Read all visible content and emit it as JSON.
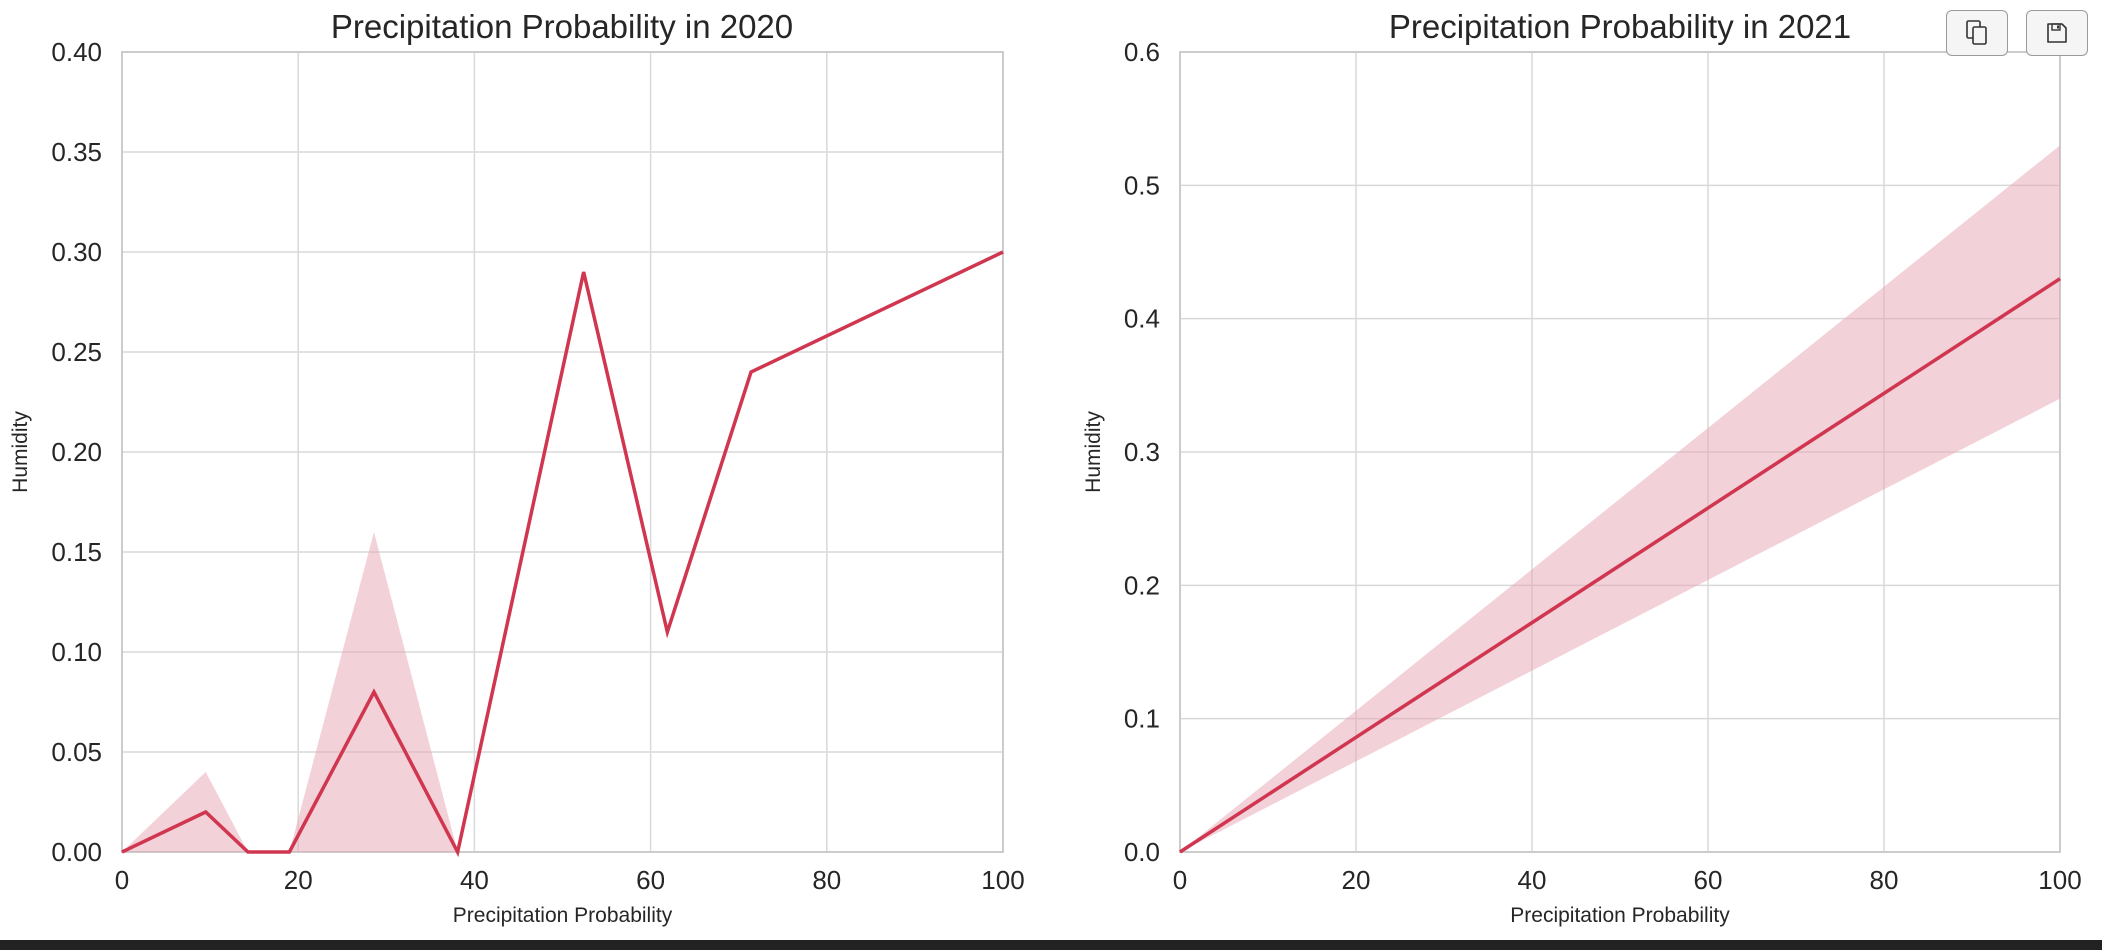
{
  "toolbar": {
    "copy_icon": "copy-icon",
    "save_icon": "floppy-disk-icon"
  },
  "colors": {
    "line": "#d0364f",
    "band": "#e8a3b1",
    "grid": "#d9d9d9",
    "frame": "#cccccc",
    "text": "#262626"
  },
  "chart_data": [
    {
      "type": "line",
      "title": "Precipitation Probability in 2020",
      "xlabel": "Precipitation Probability",
      "ylabel": "Humidity",
      "xlim": [
        0,
        100
      ],
      "ylim": [
        0,
        0.4
      ],
      "xticks": [
        0,
        20,
        40,
        60,
        80,
        100
      ],
      "xtick_labels": [
        "0",
        "20",
        "40",
        "60",
        "80",
        "100"
      ],
      "yticks": [
        0,
        0.05,
        0.1,
        0.15,
        0.2,
        0.25,
        0.3,
        0.35,
        0.4
      ],
      "ytick_labels": [
        "0.00",
        "0.05",
        "0.10",
        "0.15",
        "0.20",
        "0.25",
        "0.30",
        "0.35",
        "0.40"
      ],
      "grid": true,
      "series": [
        {
          "x": [
            0,
            9.5,
            14.3,
            19,
            28.6,
            38.1,
            52.4,
            61.9,
            71.4,
            100
          ],
          "y": [
            0,
            0.02,
            0,
            0,
            0.08,
            0,
            0.29,
            0.11,
            0.24,
            0.3
          ],
          "ci_lower": [
            0,
            0,
            0,
            0,
            0,
            0,
            0.29,
            0.11,
            0.24,
            0.3
          ],
          "ci_upper": [
            0,
            0.04,
            0,
            0,
            0.16,
            0,
            0.29,
            0.11,
            0.24,
            0.3
          ]
        }
      ]
    },
    {
      "type": "line",
      "title": "Precipitation Probability in 2021",
      "xlabel": "Precipitation Probability",
      "ylabel": "Humidity",
      "xlim": [
        0,
        100
      ],
      "ylim": [
        0,
        0.6
      ],
      "xticks": [
        0,
        20,
        40,
        60,
        80,
        100
      ],
      "xtick_labels": [
        "0",
        "20",
        "40",
        "60",
        "80",
        "100"
      ],
      "yticks": [
        0,
        0.1,
        0.2,
        0.3,
        0.4,
        0.5,
        0.6
      ],
      "ytick_labels": [
        "0.0",
        "0.1",
        "0.2",
        "0.3",
        "0.4",
        "0.5",
        "0.6"
      ],
      "grid": true,
      "series": [
        {
          "x": [
            0,
            100
          ],
          "y": [
            0,
            0.43
          ],
          "ci_lower": [
            0,
            0.34
          ],
          "ci_upper": [
            0,
            0.53
          ]
        }
      ]
    }
  ]
}
